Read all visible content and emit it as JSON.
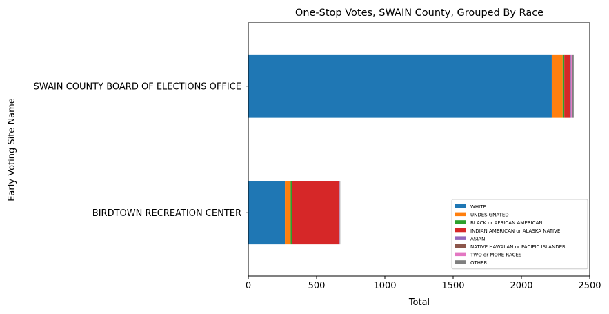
{
  "chart_data": {
    "type": "bar",
    "orientation": "horizontal",
    "stacked": true,
    "title": "One-Stop Votes, SWAIN County, Grouped By Race",
    "xlabel": "Total",
    "ylabel": "Early Voting Site Name",
    "xlim": [
      0,
      2500
    ],
    "xticks": [
      "0",
      "500",
      "1000",
      "1500",
      "2000",
      "2500"
    ],
    "xtick_values": [
      0,
      500,
      1000,
      1500,
      2000,
      2500
    ],
    "categories": [
      "BIRDTOWN RECREATION CENTER",
      "SWAIN COUNTY BOARD OF ELECTIONS OFFICE"
    ],
    "series": [
      {
        "name": "WHITE",
        "color": "#1f77b4",
        "values": [
          268,
          2222
        ]
      },
      {
        "name": "UNDESIGNATED",
        "color": "#ff7f0e",
        "values": [
          42,
          80
        ]
      },
      {
        "name": "BLACK or AFRICAN AMERICAN",
        "color": "#2ca02c",
        "values": [
          12,
          12
        ]
      },
      {
        "name": "INDIAN AMERICAN or ALASKA NATIVE",
        "color": "#d62728",
        "values": [
          345,
          45
        ]
      },
      {
        "name": "ASIAN",
        "color": "#9467bd",
        "values": [
          1,
          4
        ]
      },
      {
        "name": "NATIVE HAWAIIAN or PACIFIC ISLANDER",
        "color": "#8c564b",
        "values": [
          0,
          1
        ]
      },
      {
        "name": "TWO or MORE RACES",
        "color": "#e377c2",
        "values": [
          2,
          5
        ]
      },
      {
        "name": "OTHER",
        "color": "#7f7f7f",
        "values": [
          3,
          14
        ]
      }
    ],
    "grid": false,
    "legend_position": "lower-right"
  }
}
